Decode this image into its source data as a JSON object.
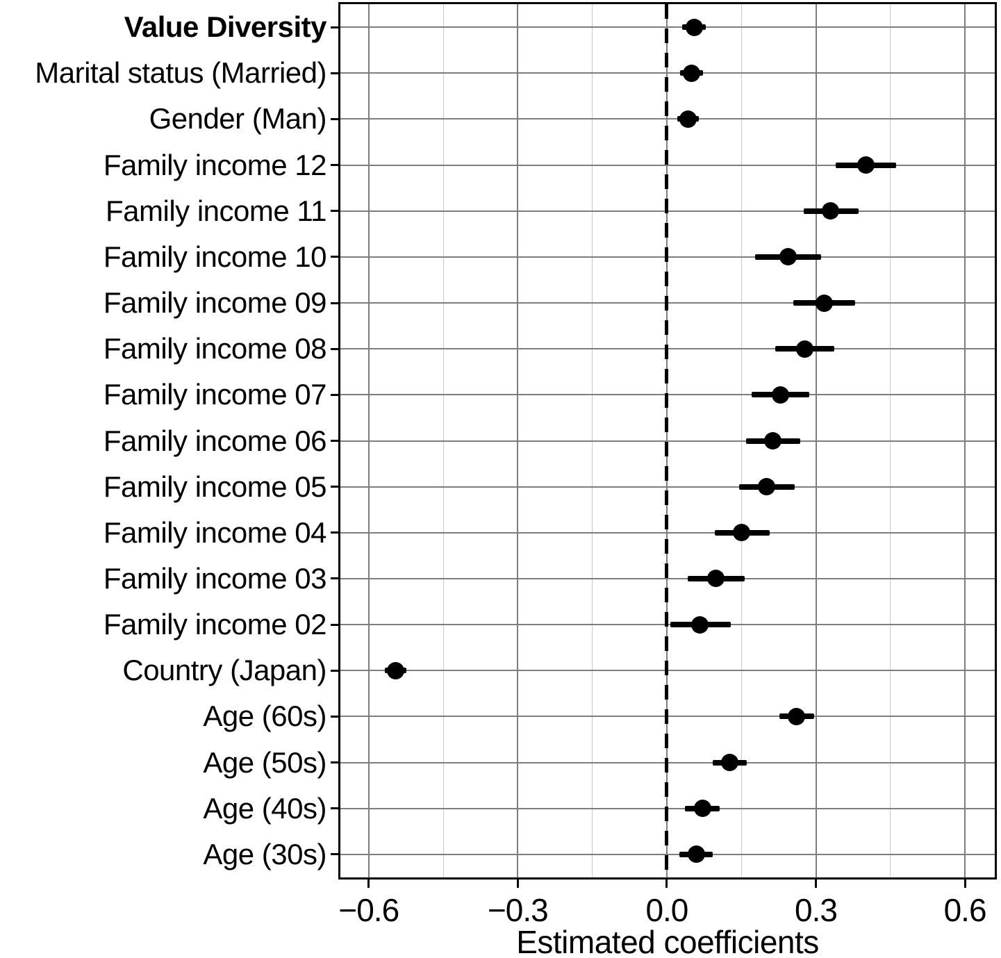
{
  "chart_data": {
    "type": "scatter",
    "variant": "coefficient_plot_with_confidence_intervals",
    "title": "",
    "xlabel": "Estimated coefficients",
    "ylabel": "",
    "xlim": [
      -0.657,
      0.66
    ],
    "grid": "on",
    "legend": "none",
    "reference_line_x": 0,
    "x_major_ticks": [
      -0.6,
      -0.3,
      0,
      0.3,
      0.6
    ],
    "x_major_tick_labels": [
      "−0.6",
      "−0.3",
      "0.0",
      "0.3",
      "0.6"
    ],
    "x_minor_ticks": [
      -0.45,
      -0.15,
      0.15,
      0.45
    ],
    "bold_categories": [
      "Value Diversity"
    ],
    "series": [
      {
        "name": "Estimated coefficients",
        "categories": [
          "Value Diversity",
          "Marital status (Married)",
          "Gender (Man)",
          "Family income 12",
          "Family income 11",
          "Family income 10",
          "Family income 09",
          "Family income 08",
          "Family income 07",
          "Family income 06",
          "Family income 05",
          "Family income 04",
          "Family income 03",
          "Family income 02",
          "Country (Japan)",
          "Age (60s)",
          "Age (50s)",
          "Age (40s)",
          "Age (30s)"
        ],
        "estimates": [
          0.056,
          0.05,
          0.043,
          0.4,
          0.33,
          0.244,
          0.317,
          0.277,
          0.228,
          0.214,
          0.201,
          0.151,
          0.099,
          0.067,
          -0.546,
          0.261,
          0.126,
          0.072,
          0.059
        ],
        "ci_lower": [
          0.031,
          0.027,
          0.021,
          0.34,
          0.275,
          0.177,
          0.255,
          0.218,
          0.17,
          0.159,
          0.146,
          0.096,
          0.042,
          0.007,
          -0.567,
          0.227,
          0.093,
          0.037,
          0.025
        ],
        "ci_upper": [
          0.078,
          0.073,
          0.065,
          0.462,
          0.386,
          0.311,
          0.379,
          0.337,
          0.287,
          0.269,
          0.258,
          0.207,
          0.157,
          0.129,
          -0.524,
          0.297,
          0.161,
          0.106,
          0.093
        ]
      }
    ]
  },
  "colors": {
    "point": "#000000",
    "ci_bar": "#000000",
    "grid_major": "#7d7d7d",
    "grid_minor": "#c9c9c9",
    "reference_line": "#000000",
    "panel_border": "#000000",
    "background": "#ffffff",
    "text": "#000000"
  }
}
